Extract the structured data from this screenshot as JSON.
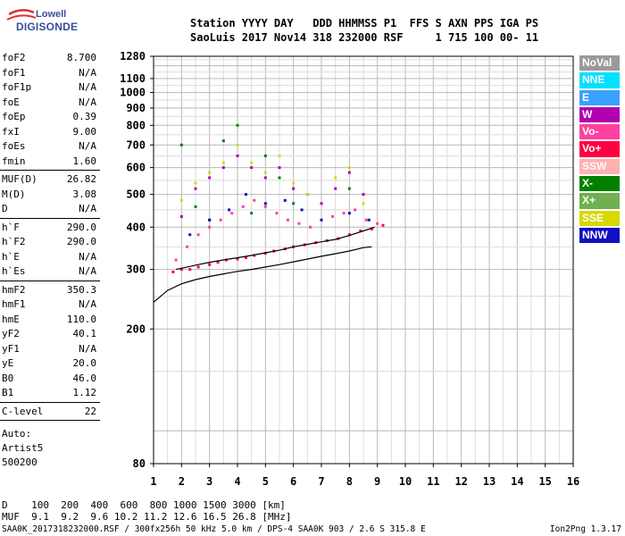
{
  "logo": {
    "line1": "Lowell",
    "line2": "DIGISONDE"
  },
  "header": {
    "line1": "Station YYYY DAY   DDD HHMMSS P1  FFS S AXN PPS IGA PS",
    "line2": "SaoLuis 2017 Nov14 318 232000 RSF     1 715 100 00- 11"
  },
  "params": {
    "g1": [
      {
        "label": "foF2",
        "value": "8.700"
      },
      {
        "label": "foF1",
        "value": "N/A"
      },
      {
        "label": "foF1p",
        "value": "N/A"
      },
      {
        "label": "foE",
        "value": "N/A"
      },
      {
        "label": "foEp",
        "value": "0.39"
      },
      {
        "label": "fxI",
        "value": "9.00"
      },
      {
        "label": "foEs",
        "value": "N/A"
      },
      {
        "label": "fmin",
        "value": "1.60"
      }
    ],
    "g2": [
      {
        "label": "MUF(D)",
        "value": "26.82"
      },
      {
        "label": "M(D)",
        "value": "3.08"
      },
      {
        "label": "D",
        "value": "N/A"
      }
    ],
    "g3": [
      {
        "label": "h`F",
        "value": "290.0"
      },
      {
        "label": "h`F2",
        "value": "290.0"
      },
      {
        "label": "h`E",
        "value": "N/A"
      },
      {
        "label": "h`Es",
        "value": "N/A"
      }
    ],
    "g4": [
      {
        "label": "hmF2",
        "value": "350.3"
      },
      {
        "label": "hmF1",
        "value": "N/A"
      },
      {
        "label": "hmE",
        "value": "110.0"
      },
      {
        "label": "yF2",
        "value": "40.1"
      },
      {
        "label": "yF1",
        "value": "N/A"
      },
      {
        "label": "yE",
        "value": "20.0"
      },
      {
        "label": "B0",
        "value": "46.0"
      },
      {
        "label": "B1",
        "value": "1.12"
      }
    ],
    "g5": [
      {
        "label": "C-level",
        "value": "22"
      }
    ]
  },
  "artist": {
    "line1": "Auto:",
    "line2": "Artist5",
    "line3": "500200"
  },
  "legend": [
    {
      "label": "NoVal",
      "color": "#9a9a9a"
    },
    {
      "label": "NNE",
      "color": "#00e0ff"
    },
    {
      "label": "E",
      "color": "#3aa0ff"
    },
    {
      "label": "W",
      "color": "#b000b0"
    },
    {
      "label": "Vo-",
      "color": "#ff40a0"
    },
    {
      "label": "Vo+",
      "color": "#ff0040"
    },
    {
      "label": "SSW",
      "color": "#ffb0b0"
    },
    {
      "label": "X-",
      "color": "#008000"
    },
    {
      "label": "X+",
      "color": "#70b050"
    },
    {
      "label": "SSE",
      "color": "#d8d800"
    },
    {
      "label": "NNW",
      "color": "#1010c0"
    }
  ],
  "bottom": {
    "line1": "D    100  200  400  600  800 1000 1500 3000 [km]",
    "line2": "MUF  9.1  9.2  9.6 10.2 11.2 12.6 16.5 26.8 [MHz]"
  },
  "footer": "SAA0K_2017318232000.RSF / 300fx256h 50 kHz 5.0 km / DPS-4 SAA0K 903 / 2.6 S 315.8 E",
  "version": "Ion2Png 1.3.17",
  "chart_data": {
    "type": "scatter",
    "xlim": [
      1,
      16
    ],
    "ylim": [
      80,
      1280
    ],
    "x_ticks": [
      1,
      2,
      3,
      4,
      5,
      6,
      7,
      8,
      9,
      10,
      11,
      12,
      13,
      14,
      15,
      16
    ],
    "y_ticks": [
      80,
      200,
      300,
      400,
      500,
      600,
      700,
      800,
      900,
      1000,
      1100,
      1280
    ],
    "grid": true,
    "y_scale": "log",
    "legend_position": "right",
    "series": [
      {
        "name": "Vo+",
        "x": [
          1.7,
          2.0,
          2.3,
          2.6,
          3.0,
          3.3,
          3.6,
          4.0,
          4.3,
          4.6,
          5.0,
          5.3,
          5.7,
          6.0,
          6.4,
          6.8,
          7.2,
          7.6,
          8.0,
          8.4,
          8.8,
          9.2
        ],
        "y": [
          295,
          300,
          300,
          305,
          310,
          315,
          320,
          322,
          325,
          330,
          335,
          340,
          345,
          350,
          355,
          360,
          365,
          370,
          380,
          390,
          395,
          405
        ]
      },
      {
        "name": "Vo-",
        "x": [
          1.8,
          2.2,
          2.6,
          3.0,
          3.4,
          3.8,
          4.2,
          4.6,
          5.0,
          5.4,
          5.8,
          6.2,
          6.6,
          7.0,
          7.4,
          7.8,
          8.2,
          8.6,
          9.0
        ],
        "y": [
          320,
          350,
          380,
          400,
          420,
          440,
          460,
          480,
          460,
          440,
          420,
          410,
          400,
          420,
          430,
          440,
          450,
          420,
          410
        ]
      },
      {
        "name": "W",
        "x": [
          2.0,
          2.5,
          3.0,
          3.5,
          4.0,
          4.5,
          5.0,
          5.5,
          6.0,
          6.5,
          7.0,
          7.5,
          8.0,
          8.5
        ],
        "y": [
          430,
          520,
          560,
          600,
          650,
          600,
          560,
          600,
          520,
          500,
          470,
          520,
          580,
          500
        ]
      },
      {
        "name": "SSE",
        "x": [
          2.0,
          2.5,
          3.0,
          3.5,
          4.0,
          4.5,
          5.0,
          5.5,
          6.0,
          6.5,
          7.5,
          8.0,
          8.5
        ],
        "y": [
          480,
          540,
          580,
          620,
          700,
          620,
          580,
          650,
          540,
          500,
          560,
          600,
          470
        ]
      },
      {
        "name": "X-",
        "x": [
          2.0,
          2.5,
          3.0,
          3.5,
          4.0,
          4.5,
          5.0,
          5.5,
          6.0,
          8.0
        ],
        "y": [
          700,
          460,
          420,
          720,
          800,
          440,
          650,
          560,
          470,
          520
        ]
      },
      {
        "name": "NNW",
        "x": [
          2.3,
          3.0,
          3.7,
          4.3,
          5.0,
          5.7,
          6.3,
          7.0,
          8.0,
          8.7
        ],
        "y": [
          380,
          420,
          450,
          500,
          470,
          480,
          450,
          420,
          440,
          420
        ]
      }
    ],
    "trace_lower": {
      "x": [
        1,
        1.5,
        2,
        2.5,
        3,
        3.5,
        4,
        4.5,
        5,
        5.5,
        6,
        6.5,
        7,
        7.5,
        8,
        8.5,
        8.8
      ],
      "y": [
        240,
        260,
        272,
        280,
        286,
        291,
        296,
        300,
        305,
        310,
        316,
        322,
        328,
        334,
        340,
        348,
        350
      ]
    },
    "trace_upper": {
      "x": [
        1.8,
        2.2,
        2.6,
        3.0,
        3.5,
        4.0,
        4.5,
        5.0,
        5.5,
        6.0,
        6.5,
        7.0,
        7.5,
        8.0,
        8.5,
        8.9
      ],
      "y": [
        300,
        305,
        310,
        315,
        320,
        325,
        330,
        336,
        342,
        350,
        356,
        362,
        368,
        378,
        390,
        400
      ]
    }
  }
}
